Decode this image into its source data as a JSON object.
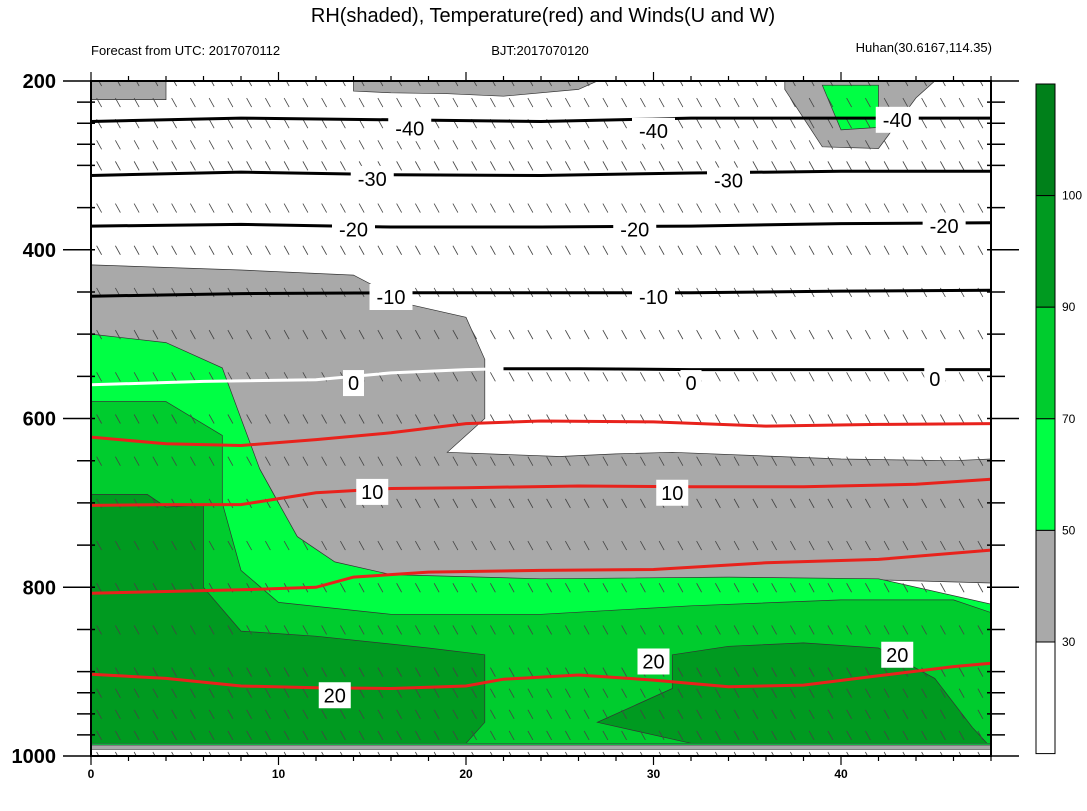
{
  "chart_data": {
    "type": "cross-section",
    "title": "RH(shaded), Temperature(red) and Winds(U and W)",
    "header": {
      "left": "Forecast from UTC: 2017070112",
      "center": "BJT:2017070120",
      "right": "Huhan(30.6167,114.35)"
    },
    "x_ticks": [
      0,
      10,
      20,
      30,
      40
    ],
    "xlim": [
      0,
      48
    ],
    "y_ticks": [
      200,
      400,
      600,
      800,
      1000
    ],
    "ylim": [
      200,
      1000
    ],
    "y_inverted": true,
    "pressure_levels": [
      200,
      225,
      250,
      275,
      300,
      350,
      400,
      450,
      500,
      550,
      600,
      650,
      700,
      750,
      800,
      850,
      900,
      925,
      950,
      975,
      1000
    ],
    "colorbar": {
      "labels": [
        30,
        50,
        70,
        90,
        100
      ],
      "colors": [
        "#ffffff",
        "#a9a9a9",
        "#00ff44",
        "#00cc2e",
        "#009a20",
        "#00801a"
      ]
    },
    "temperature_contours": [
      {
        "value": -40,
        "label": "-40",
        "color": "#000000",
        "points": [
          [
            0,
            248
          ],
          [
            8,
            244
          ],
          [
            16,
            246
          ],
          [
            24,
            248
          ],
          [
            32,
            244
          ],
          [
            40,
            244
          ],
          [
            48,
            244
          ]
        ]
      },
      {
        "value": -30,
        "label": "-30",
        "color": "#000000",
        "points": [
          [
            0,
            312
          ],
          [
            8,
            308
          ],
          [
            16,
            311
          ],
          [
            24,
            312
          ],
          [
            32,
            309
          ],
          [
            40,
            307
          ],
          [
            48,
            307
          ]
        ]
      },
      {
        "value": -20,
        "label": "-20",
        "color": "#000000",
        "points": [
          [
            0,
            372
          ],
          [
            8,
            370
          ],
          [
            16,
            373
          ],
          [
            24,
            373
          ],
          [
            32,
            372
          ],
          [
            40,
            369
          ],
          [
            48,
            368
          ]
        ]
      },
      {
        "value": -10,
        "label": "-10",
        "color": "#000000",
        "points": [
          [
            0,
            455
          ],
          [
            8,
            452
          ],
          [
            16,
            451
          ],
          [
            24,
            451
          ],
          [
            32,
            451
          ],
          [
            40,
            449
          ],
          [
            48,
            448
          ]
        ]
      },
      {
        "value": 0,
        "label": "0",
        "color": "#ffffff",
        "points": [
          [
            0,
            560
          ],
          [
            6,
            556
          ],
          [
            12,
            554
          ],
          [
            16,
            546
          ],
          [
            20,
            542
          ],
          [
            22,
            541
          ]
        ]
      },
      {
        "value": 0,
        "label": "0",
        "color": "#000000",
        "points": [
          [
            22,
            541
          ],
          [
            26,
            541
          ],
          [
            32,
            542
          ],
          [
            40,
            542
          ],
          [
            48,
            542
          ]
        ]
      },
      {
        "value": 10,
        "label": "10",
        "color": "#e8221c",
        "points": [
          [
            0,
            622
          ],
          [
            4,
            630
          ],
          [
            8,
            632
          ],
          [
            12,
            625
          ],
          [
            16,
            617
          ],
          [
            20,
            606
          ],
          [
            24,
            603
          ],
          [
            30,
            604
          ],
          [
            36,
            609
          ],
          [
            42,
            607
          ],
          [
            48,
            606
          ]
        ]
      },
      {
        "value": 10,
        "label": "10",
        "color": "#e8221c",
        "points": [
          [
            0,
            703
          ],
          [
            4,
            702
          ],
          [
            8,
            702
          ],
          [
            12,
            688
          ],
          [
            16,
            683
          ],
          [
            20,
            682
          ],
          [
            26,
            680
          ],
          [
            32,
            681
          ],
          [
            38,
            681
          ],
          [
            44,
            678
          ],
          [
            48,
            672
          ]
        ]
      },
      {
        "value": 20,
        "label": "20",
        "color": "#e8221c",
        "points": [
          [
            0,
            807
          ],
          [
            4,
            805
          ],
          [
            8,
            803
          ],
          [
            12,
            800
          ],
          [
            14,
            788
          ],
          [
            18,
            782
          ],
          [
            24,
            780
          ],
          [
            30,
            779
          ],
          [
            36,
            771
          ],
          [
            42,
            767
          ],
          [
            48,
            756
          ]
        ]
      },
      {
        "value": 20,
        "label": "20",
        "color": "#e8221c",
        "points": [
          [
            0,
            903
          ],
          [
            4,
            908
          ],
          [
            8,
            917
          ],
          [
            12,
            919
          ],
          [
            16,
            920
          ],
          [
            20,
            917
          ],
          [
            22,
            909
          ],
          [
            26,
            904
          ],
          [
            30,
            910
          ],
          [
            34,
            918
          ],
          [
            38,
            916
          ],
          [
            42,
            905
          ],
          [
            46,
            894
          ],
          [
            48,
            890
          ]
        ]
      }
    ],
    "contour_labels": [
      {
        "text": "-40",
        "x": 17,
        "y": 256
      },
      {
        "text": "-40",
        "x": 30,
        "y": 259
      },
      {
        "text": "-40",
        "x": 43,
        "y": 246
      },
      {
        "text": "-30",
        "x": 15,
        "y": 316
      },
      {
        "text": "-30",
        "x": 34,
        "y": 318
      },
      {
        "text": "-20",
        "x": 14,
        "y": 376
      },
      {
        "text": "-20",
        "x": 29,
        "y": 376
      },
      {
        "text": "-20",
        "x": 45.5,
        "y": 372
      },
      {
        "text": "-10",
        "x": 16,
        "y": 456
      },
      {
        "text": "-10",
        "x": 30,
        "y": 456
      },
      {
        "text": "0",
        "x": 14,
        "y": 558
      },
      {
        "text": "0",
        "x": 32,
        "y": 558
      },
      {
        "text": "0",
        "x": 45,
        "y": 553
      },
      {
        "text": "10",
        "x": 15,
        "y": 687
      },
      {
        "text": "10",
        "x": 31,
        "y": 688
      },
      {
        "text": "20",
        "x": 30,
        "y": 888
      },
      {
        "text": "20",
        "x": 13,
        "y": 928
      },
      {
        "text": "20",
        "x": 43,
        "y": 880
      }
    ],
    "rh_regions": [
      {
        "rh": 40,
        "color": "#a9a9a9",
        "points": [
          [
            0,
            200
          ],
          [
            4,
            200
          ],
          [
            4,
            222
          ],
          [
            0,
            222
          ]
        ]
      },
      {
        "rh": 40,
        "color": "#a9a9a9",
        "points": [
          [
            14,
            200
          ],
          [
            27,
            200
          ],
          [
            26,
            210
          ],
          [
            22,
            218
          ],
          [
            19,
            215
          ],
          [
            16,
            214
          ],
          [
            14,
            212
          ]
        ]
      },
      {
        "rh": 40,
        "color": "#a9a9a9",
        "points": [
          [
            37,
            200
          ],
          [
            45,
            200
          ],
          [
            44,
            220
          ],
          [
            42,
            280
          ],
          [
            39,
            278
          ],
          [
            37,
            210
          ]
        ]
      },
      {
        "rh": 60,
        "color": "#00ff44",
        "points": [
          [
            39,
            205
          ],
          [
            42,
            205
          ],
          [
            42,
            255
          ],
          [
            40,
            258
          ]
        ]
      },
      {
        "rh": 40,
        "color": "#a9a9a9",
        "points": [
          [
            0,
            418
          ],
          [
            8,
            424
          ],
          [
            14,
            430
          ],
          [
            17,
            465
          ],
          [
            20,
            480
          ],
          [
            21,
            530
          ],
          [
            21,
            600
          ],
          [
            19,
            640
          ],
          [
            25,
            645
          ],
          [
            28,
            642
          ],
          [
            31,
            640
          ],
          [
            40,
            648
          ],
          [
            46,
            650
          ],
          [
            48,
            648
          ],
          [
            48,
            795
          ],
          [
            40,
            790
          ],
          [
            30,
            794
          ],
          [
            20,
            794
          ],
          [
            14,
            790
          ],
          [
            11,
            750
          ],
          [
            10,
            700
          ],
          [
            8,
            620
          ],
          [
            2,
            560
          ],
          [
            0,
            550
          ]
        ]
      },
      {
        "rh": 60,
        "color": "#00ff44",
        "points": [
          [
            0,
            500
          ],
          [
            4,
            510
          ],
          [
            7,
            540
          ],
          [
            8,
            600
          ],
          [
            9,
            660
          ],
          [
            10,
            700
          ],
          [
            11,
            740
          ],
          [
            13,
            770
          ],
          [
            16,
            785
          ],
          [
            24,
            790
          ],
          [
            34,
            788
          ],
          [
            42,
            790
          ],
          [
            48,
            820
          ],
          [
            48,
            1000
          ],
          [
            0,
            1000
          ]
        ]
      },
      {
        "rh": 80,
        "color": "#00cc2e",
        "points": [
          [
            0,
            580
          ],
          [
            4,
            580
          ],
          [
            7,
            620
          ],
          [
            7,
            700
          ],
          [
            8,
            780
          ],
          [
            10,
            818
          ],
          [
            16,
            832
          ],
          [
            24,
            832
          ],
          [
            32,
            822
          ],
          [
            40,
            815
          ],
          [
            46,
            815
          ],
          [
            48,
            830
          ],
          [
            48,
            1000
          ],
          [
            0,
            1000
          ]
        ]
      },
      {
        "rh": 100,
        "color": "#009a20",
        "points": [
          [
            0,
            690
          ],
          [
            3,
            690
          ],
          [
            4,
            705
          ],
          [
            6,
            702
          ],
          [
            6,
            800
          ],
          [
            8,
            852
          ],
          [
            12,
            858
          ],
          [
            18,
            872
          ],
          [
            21,
            880
          ],
          [
            21,
            960
          ],
          [
            20,
            985
          ],
          [
            0,
            985
          ]
        ]
      },
      {
        "rh": 100,
        "color": "#009a20",
        "points": [
          [
            31,
            880
          ],
          [
            34,
            870
          ],
          [
            38,
            866
          ],
          [
            42,
            872
          ],
          [
            45,
            908
          ],
          [
            47,
            966
          ],
          [
            48,
            990
          ],
          [
            48,
            1000
          ],
          [
            35,
            1000
          ],
          [
            32,
            985
          ],
          [
            27,
            960
          ],
          [
            29,
            940
          ],
          [
            31,
            920
          ]
        ]
      },
      {
        "rh": 60,
        "color": "#00ff44",
        "points": [
          [
            0,
            985
          ],
          [
            48,
            985
          ],
          [
            48,
            1000
          ],
          [
            0,
            1000
          ]
        ]
      },
      {
        "rh": 40,
        "color": "#a9a9a9",
        "points": [
          [
            0,
            987
          ],
          [
            48,
            987
          ],
          [
            48,
            1000
          ],
          [
            0,
            1000
          ]
        ]
      },
      {
        "rh": 20,
        "color": "#ffffff",
        "points": [
          [
            0,
            992
          ],
          [
            48,
            992
          ],
          [
            48,
            1000
          ],
          [
            0,
            1000
          ]
        ]
      }
    ]
  }
}
